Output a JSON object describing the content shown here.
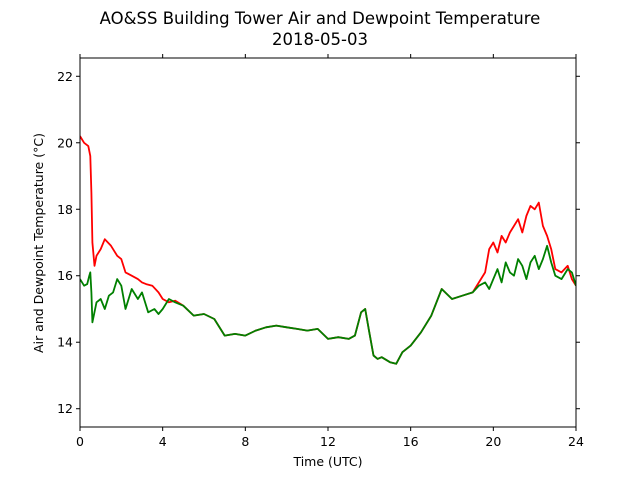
{
  "chart_data": {
    "type": "line",
    "title": "AO&SS Building Tower Air and Dewpoint Temperature",
    "subtitle": "2018-05-03",
    "xlabel": "Time (UTC)",
    "ylabel": "Air and Dewpoint Temperature (°C)",
    "xlim": [
      0,
      24
    ],
    "ylim": [
      11.45,
      22.55
    ],
    "xticks": [
      0,
      4,
      8,
      12,
      16,
      20,
      24
    ],
    "yticks": [
      12,
      14,
      16,
      18,
      20,
      22
    ],
    "grid": false,
    "legend": "none",
    "series": [
      {
        "color": "#ff0000",
        "x": [
          0.0,
          0.2,
          0.4,
          0.5,
          0.55,
          0.6,
          0.7,
          0.8,
          1.0,
          1.2,
          1.5,
          1.8,
          2.0,
          2.2,
          2.5,
          2.8,
          3.0,
          3.2,
          3.5,
          3.8,
          4.0,
          4.3,
          4.6,
          5.0,
          5.5,
          6.0,
          6.5,
          7.0,
          7.5,
          8.0,
          8.5,
          9.0,
          9.5,
          10.0,
          10.5,
          11.0,
          11.5,
          12.0,
          12.5,
          13.0,
          13.3,
          13.6,
          13.8,
          14.0,
          14.2,
          14.4,
          14.6,
          15.0,
          15.3,
          15.6,
          16.0,
          16.5,
          17.0,
          17.5,
          18.0,
          18.5,
          19.0,
          19.3,
          19.6,
          19.8,
          20.0,
          20.2,
          20.4,
          20.6,
          20.8,
          21.0,
          21.2,
          21.4,
          21.6,
          21.8,
          22.0,
          22.2,
          22.4,
          22.6,
          22.8,
          23.0,
          23.3,
          23.6,
          23.8,
          24.0
        ],
        "values": [
          20.2,
          20.0,
          19.9,
          19.6,
          18.5,
          17.0,
          16.3,
          16.6,
          16.8,
          17.1,
          16.9,
          16.6,
          16.5,
          16.1,
          16.0,
          15.9,
          15.8,
          15.75,
          15.7,
          15.5,
          15.3,
          15.2,
          15.25,
          15.1,
          14.8,
          14.85,
          14.7,
          14.2,
          14.25,
          14.2,
          14.35,
          14.45,
          14.5,
          14.45,
          14.4,
          14.35,
          14.4,
          14.1,
          14.15,
          14.1,
          14.2,
          14.9,
          15.0,
          14.3,
          13.6,
          13.5,
          13.55,
          13.4,
          13.35,
          13.7,
          13.9,
          14.3,
          14.8,
          15.6,
          15.3,
          15.4,
          15.5,
          15.8,
          16.1,
          16.8,
          17.0,
          16.7,
          17.2,
          17.0,
          17.3,
          17.5,
          17.7,
          17.3,
          17.8,
          18.1,
          18.0,
          18.2,
          17.5,
          17.2,
          16.8,
          16.2,
          16.1,
          16.3,
          15.9,
          15.7
        ]
      },
      {
        "color": "#008000",
        "x": [
          0.0,
          0.2,
          0.35,
          0.45,
          0.5,
          0.55,
          0.6,
          0.8,
          1.0,
          1.2,
          1.4,
          1.6,
          1.8,
          2.0,
          2.2,
          2.5,
          2.8,
          3.0,
          3.3,
          3.6,
          3.8,
          4.0,
          4.3,
          4.6,
          5.0,
          5.5,
          6.0,
          6.5,
          7.0,
          7.5,
          8.0,
          8.5,
          9.0,
          9.5,
          10.0,
          10.5,
          11.0,
          11.5,
          12.0,
          12.5,
          13.0,
          13.3,
          13.6,
          13.8,
          14.0,
          14.2,
          14.4,
          14.6,
          15.0,
          15.3,
          15.6,
          16.0,
          16.5,
          17.0,
          17.5,
          18.0,
          18.5,
          19.0,
          19.3,
          19.6,
          19.8,
          20.0,
          20.2,
          20.4,
          20.6,
          20.8,
          21.0,
          21.2,
          21.4,
          21.6,
          21.8,
          22.0,
          22.2,
          22.4,
          22.6,
          22.8,
          23.0,
          23.3,
          23.6,
          23.8,
          24.0
        ],
        "values": [
          15.9,
          15.7,
          15.75,
          16.0,
          16.1,
          15.5,
          14.6,
          15.2,
          15.3,
          15.0,
          15.4,
          15.5,
          15.9,
          15.7,
          15.0,
          15.6,
          15.3,
          15.5,
          14.9,
          15.0,
          14.85,
          15.0,
          15.3,
          15.2,
          15.1,
          14.8,
          14.85,
          14.7,
          14.2,
          14.25,
          14.2,
          14.35,
          14.45,
          14.5,
          14.45,
          14.4,
          14.35,
          14.4,
          14.1,
          14.15,
          14.1,
          14.2,
          14.9,
          15.0,
          14.3,
          13.6,
          13.5,
          13.55,
          13.4,
          13.35,
          13.7,
          13.9,
          14.3,
          14.8,
          15.6,
          15.3,
          15.4,
          15.5,
          15.7,
          15.8,
          15.6,
          15.9,
          16.2,
          15.8,
          16.4,
          16.1,
          16.0,
          16.5,
          16.3,
          15.9,
          16.4,
          16.6,
          16.2,
          16.5,
          16.9,
          16.4,
          16.0,
          15.9,
          16.2,
          16.1,
          15.7
        ]
      }
    ]
  }
}
